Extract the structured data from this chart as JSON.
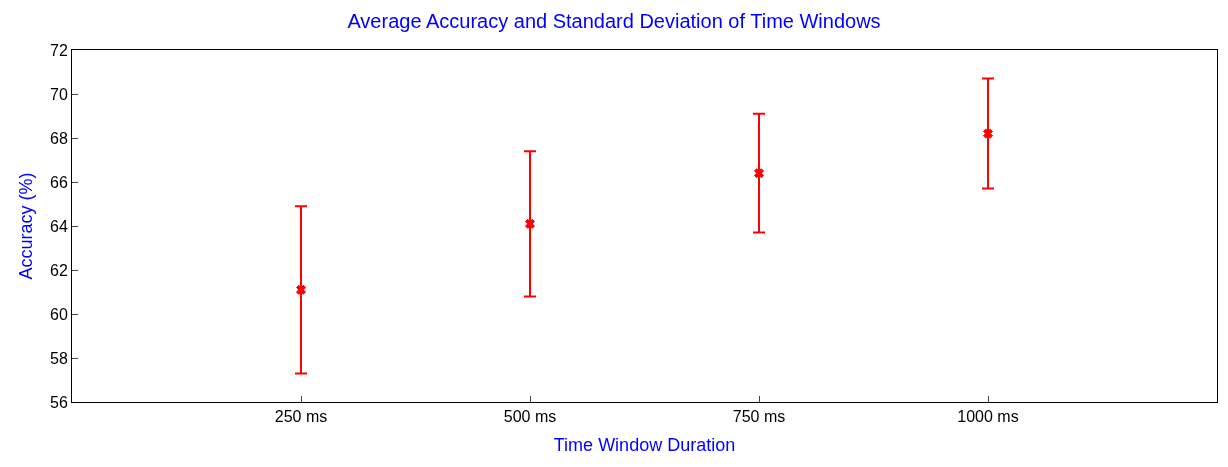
{
  "chart_data": {
    "type": "scatter",
    "title": "Average Accuracy and Standard Deviation of Time Windows",
    "xlabel": "Time Window Duration",
    "ylabel": "Accuracy (%)",
    "x": [
      250,
      500,
      750,
      1000
    ],
    "series": [
      {
        "color": "#ff0000",
        "values": [
          61.1,
          64.1,
          66.4,
          68.2
        ],
        "errors": [
          3.8,
          3.3,
          2.7,
          2.5
        ]
      }
    ],
    "xlim": [
      0,
      1250
    ],
    "xticks": [
      {
        "value": 250,
        "label": "250 ms"
      },
      {
        "value": 500,
        "label": "500 ms"
      },
      {
        "value": 750,
        "label": "750 ms"
      },
      {
        "value": 1000,
        "label": "1000 ms"
      }
    ],
    "ylim": [
      56,
      72
    ],
    "yticks": [
      56,
      58,
      60,
      62,
      64,
      66,
      68,
      70,
      72
    ],
    "marker": "cross"
  }
}
